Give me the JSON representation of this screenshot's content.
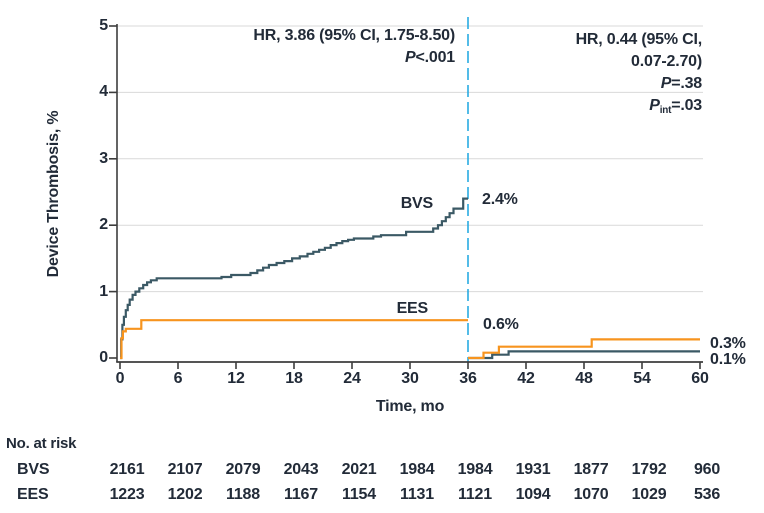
{
  "chart_data": {
    "type": "line",
    "subtype": "kaplan-meier-step",
    "title": "",
    "ylabel": "Device Thrombosis, %",
    "xlabel": "Time, mo",
    "xlim": [
      0,
      60
    ],
    "ylim": [
      0,
      5
    ],
    "xticks": [
      0,
      6,
      12,
      18,
      24,
      30,
      36,
      42,
      48,
      54,
      60
    ],
    "yticks": [
      0,
      1,
      2,
      3,
      4,
      5
    ],
    "grid": "horizontal",
    "landmark_x": 36,
    "colors": {
      "bvs": "#3b5965",
      "ees": "#f7941e",
      "landmark": "#29abe2",
      "grid": "#d9d9d9",
      "axis": "#3d3d3d",
      "text": "#222b38"
    },
    "series": [
      {
        "name": "BVS",
        "color": "#3b5965",
        "label_36mo": "2.4%",
        "label_60mo": "0.1%",
        "segments": [
          [
            [
              0,
              0
            ],
            [
              0.12,
              0.28
            ],
            [
              0.25,
              0.5
            ],
            [
              0.4,
              0.62
            ],
            [
              0.6,
              0.72
            ],
            [
              0.8,
              0.8
            ],
            [
              1.0,
              0.88
            ],
            [
              1.3,
              0.95
            ],
            [
              1.6,
              1.0
            ],
            [
              2.0,
              1.05
            ],
            [
              2.4,
              1.1
            ],
            [
              2.8,
              1.14
            ],
            [
              3.2,
              1.17
            ],
            [
              3.8,
              1.2
            ],
            [
              10.5,
              1.22
            ],
            [
              11.5,
              1.25
            ],
            [
              13.5,
              1.28
            ],
            [
              14.2,
              1.32
            ],
            [
              14.8,
              1.36
            ],
            [
              15.4,
              1.4
            ],
            [
              16.2,
              1.43
            ],
            [
              17.0,
              1.46
            ],
            [
              17.8,
              1.5
            ],
            [
              18.6,
              1.53
            ],
            [
              19.4,
              1.57
            ],
            [
              20.0,
              1.6
            ],
            [
              20.6,
              1.63
            ],
            [
              21.2,
              1.66
            ],
            [
              21.8,
              1.7
            ],
            [
              22.4,
              1.73
            ],
            [
              23.0,
              1.76
            ],
            [
              23.6,
              1.78
            ],
            [
              24.2,
              1.8
            ],
            [
              26.2,
              1.83
            ],
            [
              27.0,
              1.85
            ],
            [
              29.6,
              1.9
            ],
            [
              32.4,
              1.95
            ],
            [
              32.9,
              2.0
            ],
            [
              33.3,
              2.06
            ],
            [
              33.7,
              2.12
            ],
            [
              34.1,
              2.18
            ],
            [
              34.5,
              2.25
            ],
            [
              35.5,
              2.4
            ],
            [
              36,
              2.4
            ]
          ],
          [
            [
              36,
              0
            ],
            [
              38.5,
              0.05
            ],
            [
              40.2,
              0.1
            ],
            [
              60,
              0.1
            ]
          ]
        ]
      },
      {
        "name": "EES",
        "color": "#f7941e",
        "label_36mo": "0.6%",
        "label_60mo": "0.3%",
        "segments": [
          [
            [
              0,
              0
            ],
            [
              0.15,
              0.3
            ],
            [
              0.3,
              0.4
            ],
            [
              0.6,
              0.44
            ],
            [
              2.2,
              0.57
            ],
            [
              36,
              0.57
            ]
          ],
          [
            [
              36,
              0
            ],
            [
              37.6,
              0.08
            ],
            [
              39.2,
              0.17
            ],
            [
              48.8,
              0.28
            ],
            [
              60,
              0.28
            ]
          ]
        ]
      }
    ],
    "annotations": {
      "left": {
        "line1": "HR, 3.86 (95% CI, 1.75-8.50)",
        "p_label": "P",
        "p_value": "<.001"
      },
      "right": {
        "line1": "HR, 0.44 (95% CI,",
        "line2": "0.07-2.70)",
        "p_label": "P",
        "p_value": "=.38",
        "pint_label": "P",
        "pint_sub": "int",
        "pint_value": "=.03"
      }
    },
    "risk_table": {
      "header": "No. at risk",
      "rows": [
        {
          "label": "BVS",
          "values": [
            "2161",
            "2107",
            "2079",
            "2043",
            "2021",
            "1984",
            "1984",
            "1931",
            "1877",
            "1792",
            "960"
          ]
        },
        {
          "label": "EES",
          "values": [
            "1223",
            "1202",
            "1188",
            "1167",
            "1154",
            "1131",
            "1121",
            "1094",
            "1070",
            "1029",
            "536"
          ]
        }
      ]
    }
  }
}
